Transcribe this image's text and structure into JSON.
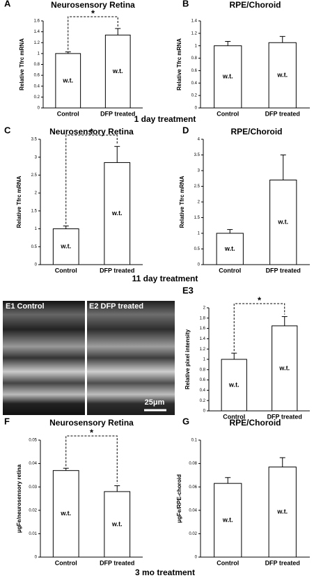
{
  "captions": [
    "1 day treatment",
    "11 day treatment",
    "3 mo treatment"
  ],
  "micrograph": {
    "left_label": "E1 Control",
    "right_label": "E2 DFP treated",
    "scale_label": "25μm"
  },
  "chart_data": [
    {
      "type": "bar",
      "panel": "A",
      "title": "Neurosensory Retina",
      "ylabel": "Relative Tfrc mRNA",
      "categories": [
        "Control",
        "DFP treated"
      ],
      "values": [
        1.0,
        1.34
      ],
      "errors": [
        0.03,
        0.12
      ],
      "bar_labels": [
        "w.t.",
        "w.t."
      ],
      "annotation": "*",
      "color": "#ffffff",
      "ylim": [
        0,
        1.6
      ],
      "yticks": [
        0,
        0.2,
        0.4,
        0.6,
        0.8,
        1,
        1.2,
        1.4,
        1.6
      ]
    },
    {
      "type": "bar",
      "panel": "B",
      "title": "RPE/Choroid",
      "ylabel": "Relative Tfrc mRNA",
      "categories": [
        "Control",
        "DFP treated"
      ],
      "values": [
        1.0,
        1.05
      ],
      "errors": [
        0.07,
        0.1
      ],
      "bar_labels": [
        "w.t.",
        "w.t."
      ],
      "color": "#ffffff",
      "ylim": [
        0,
        1.4
      ],
      "yticks": [
        0,
        0.2,
        0.4,
        0.6,
        0.8,
        1,
        1.2,
        1.4
      ]
    },
    {
      "type": "bar",
      "panel": "C",
      "title": "Neurosensory Retina",
      "ylabel": "Relative Tfrc mRNA",
      "categories": [
        "Control",
        "DFP treated"
      ],
      "values": [
        1.0,
        2.85
      ],
      "errors": [
        0.08,
        0.45
      ],
      "bar_labels": [
        "w.t.",
        "w.t."
      ],
      "annotation": "*",
      "color": "#ffffff",
      "ylim": [
        0,
        3.5
      ],
      "yticks": [
        0,
        0.5,
        1,
        1.5,
        2,
        2.5,
        3,
        3.5
      ]
    },
    {
      "type": "bar",
      "panel": "D",
      "title": "RPE/Choroid",
      "ylabel": "Relative Tfrc mRNA",
      "categories": [
        "Control",
        "DFP treated"
      ],
      "values": [
        1.0,
        2.7
      ],
      "errors": [
        0.12,
        0.8
      ],
      "bar_labels": [
        "w.t.",
        "w.t."
      ],
      "color": "#ffffff",
      "ylim": [
        0,
        4
      ],
      "yticks": [
        0,
        0.5,
        1,
        1.5,
        2,
        2.5,
        3,
        3.5,
        4
      ]
    },
    {
      "type": "bar",
      "panel": "E3",
      "ylabel": "Relative pixel intensity",
      "categories": [
        "Control",
        "DFP treated"
      ],
      "values": [
        1.0,
        1.65
      ],
      "errors": [
        0.12,
        0.18
      ],
      "bar_labels": [
        "w.t.",
        "w.t."
      ],
      "annotation": "*",
      "color": "#ffffff",
      "ylim": [
        0,
        2
      ],
      "yticks": [
        0,
        0.2,
        0.4,
        0.6,
        0.8,
        1,
        1.2,
        1.4,
        1.6,
        1.8,
        2
      ]
    },
    {
      "type": "bar",
      "panel": "F",
      "title": "Neurosensory Retina",
      "ylabel": "μgFe/neurosensory retina",
      "categories": [
        "Control",
        "DFP treated"
      ],
      "values": [
        0.037,
        0.028
      ],
      "errors": [
        0.001,
        0.0025
      ],
      "bar_labels": [
        "w.t.",
        "w.t."
      ],
      "annotation": "*",
      "color": "#ffffff",
      "ylim": [
        0,
        0.05
      ],
      "yticks": [
        0,
        0.01,
        0.02,
        0.03,
        0.04,
        0.05
      ]
    },
    {
      "type": "bar",
      "panel": "G",
      "title": "RPE/Choroid",
      "ylabel": "μgFe/RPE-choroid",
      "categories": [
        "Control",
        "DFP treated"
      ],
      "values": [
        0.063,
        0.077
      ],
      "errors": [
        0.005,
        0.008
      ],
      "bar_labels": [
        "w.t.",
        "w.t."
      ],
      "color": "#ffffff",
      "ylim": [
        0,
        0.1
      ],
      "yticks": [
        0,
        0.02,
        0.04,
        0.06,
        0.08,
        0.1
      ]
    }
  ]
}
